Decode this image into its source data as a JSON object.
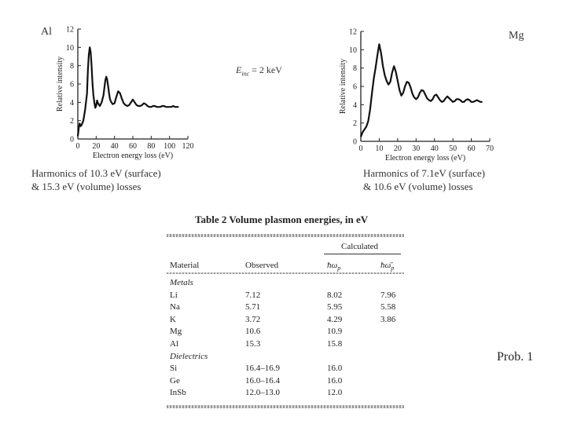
{
  "labels": {
    "al": "Al",
    "mg": "Mg",
    "einc_symbol": "E",
    "einc_subscript": "inc",
    "einc_value": " = 2 keV",
    "al_caption_1": "Harmonics of 10.3 eV (surface)",
    "al_caption_2": "& 15.3 eV (volume) losses",
    "mg_caption_1": "Harmonics of 7.1eV (surface)",
    "mg_caption_2": "& 10.6 eV (volume) losses",
    "prob": "Prob. 1"
  },
  "chart_data": [
    {
      "type": "line",
      "xlabel": "Electron energy loss (eV)",
      "ylabel": "Relative intensity",
      "xlim": [
        0,
        120
      ],
      "ylim": [
        0,
        12
      ],
      "xticks": [
        "0",
        "20",
        "40",
        "60",
        "80",
        "100",
        "120"
      ],
      "yticks": [
        "0",
        "2",
        "4",
        "6",
        "8",
        "10",
        "12"
      ],
      "series": [
        {
          "x": [
            0,
            1,
            2,
            3,
            4,
            6,
            8,
            10,
            11,
            12,
            13,
            14,
            15,
            16,
            17,
            18,
            19,
            20,
            21,
            22,
            24,
            26,
            28,
            29,
            30,
            31,
            32,
            33,
            34,
            35,
            36,
            38,
            40,
            42,
            44,
            46,
            48,
            50,
            52,
            54,
            56,
            58,
            60,
            62,
            64,
            66,
            68,
            70,
            72,
            74,
            76,
            78,
            80,
            82,
            84,
            86,
            88,
            90,
            92,
            94,
            96,
            98,
            100,
            102,
            104,
            106,
            108,
            110
          ],
          "y": [
            0.3,
            1.2,
            1.7,
            1.4,
            1.5,
            2.0,
            3.2,
            5.0,
            7.5,
            9.2,
            10.0,
            9.5,
            8.0,
            6.0,
            4.8,
            4.0,
            3.4,
            3.6,
            4.2,
            3.9,
            3.6,
            4.0,
            4.8,
            5.6,
            6.4,
            6.8,
            6.5,
            5.8,
            5.0,
            4.4,
            4.1,
            3.8,
            3.9,
            4.6,
            5.2,
            5.0,
            4.4,
            3.9,
            3.7,
            3.6,
            3.7,
            4.0,
            4.3,
            4.0,
            3.7,
            3.6,
            3.6,
            3.7,
            3.9,
            3.8,
            3.6,
            3.5,
            3.5,
            3.6,
            3.6,
            3.5,
            3.5,
            3.5,
            3.6,
            3.6,
            3.5,
            3.5,
            3.5,
            3.5,
            3.6,
            3.5,
            3.5,
            3.5
          ]
        }
      ]
    },
    {
      "type": "line",
      "xlabel": "Electron energy loss (eV)",
      "ylabel": "Relative intensity",
      "xlim": [
        0,
        70
      ],
      "ylim": [
        0,
        12
      ],
      "xticks": [
        "0",
        "10",
        "20",
        "30",
        "40",
        "50",
        "60",
        "70"
      ],
      "yticks": [
        "0",
        "2",
        "4",
        "6",
        "8",
        "10",
        "12"
      ],
      "series": [
        {
          "x": [
            0,
            1,
            2,
            3,
            4,
            5,
            6,
            7,
            8,
            9,
            10,
            11,
            12,
            13,
            14,
            15,
            16,
            17,
            18,
            19,
            20,
            21,
            22,
            23,
            24,
            25,
            26,
            27,
            28,
            29,
            30,
            31,
            32,
            33,
            34,
            35,
            36,
            37,
            38,
            39,
            40,
            41,
            42,
            43,
            44,
            45,
            46,
            47,
            48,
            49,
            50,
            51,
            52,
            53,
            54,
            55,
            56,
            57,
            58,
            59,
            60,
            61,
            62,
            63,
            64,
            65,
            66
          ],
          "y": [
            0.5,
            1.0,
            1.3,
            1.6,
            2.2,
            3.4,
            5.2,
            6.8,
            8.0,
            9.4,
            10.6,
            9.6,
            8.2,
            7.2,
            6.6,
            6.2,
            6.5,
            7.5,
            8.2,
            7.6,
            6.6,
            5.6,
            5.0,
            5.3,
            6.0,
            6.5,
            6.4,
            5.9,
            5.2,
            4.8,
            4.6,
            4.8,
            5.3,
            5.6,
            5.5,
            5.1,
            4.7,
            4.5,
            4.4,
            4.6,
            5.0,
            5.1,
            4.8,
            4.5,
            4.3,
            4.4,
            4.7,
            4.9,
            4.7,
            4.5,
            4.3,
            4.4,
            4.6,
            4.6,
            4.5,
            4.3,
            4.3,
            4.5,
            4.6,
            4.5,
            4.3,
            4.3,
            4.4,
            4.5,
            4.4,
            4.3,
            4.3
          ]
        }
      ]
    },
    {
      "type": "table",
      "title": "Table 2  Volume plasmon energies, in eV",
      "header": {
        "material": "Material",
        "observed": "Observed",
        "calculated": "Calculated",
        "calc_1": "ħω",
        "calc_1_sub": "p",
        "calc_2": "ħω̄",
        "calc_2_sub": "p"
      },
      "rows": [
        {
          "material": "Metals",
          "observed": "",
          "calc_1": "",
          "calc_2": "",
          "italic": true
        },
        {
          "material": "Li",
          "observed": "7.12",
          "calc_1": "8.02",
          "calc_2": "7.96"
        },
        {
          "material": "Na",
          "observed": "5.71",
          "calc_1": "5.95",
          "calc_2": "5.58"
        },
        {
          "material": "K",
          "observed": "3.72",
          "calc_1": "4.29",
          "calc_2": "3.86"
        },
        {
          "material": "Mg",
          "observed": "10.6",
          "calc_1": "10.9",
          "calc_2": ""
        },
        {
          "material": "Al",
          "observed": "15.3",
          "calc_1": "15.8",
          "calc_2": ""
        },
        {
          "material": "Dielectrics",
          "observed": "",
          "calc_1": "",
          "calc_2": "",
          "italic": true
        },
        {
          "material": "Si",
          "observed": "16.4–16.9",
          "calc_1": "16.0",
          "calc_2": ""
        },
        {
          "material": "Ge",
          "observed": "16.0–16.4",
          "calc_1": "16.0",
          "calc_2": ""
        },
        {
          "material": "InSb",
          "observed": "12.0–13.0",
          "calc_1": "12.0",
          "calc_2": ""
        }
      ]
    }
  ]
}
